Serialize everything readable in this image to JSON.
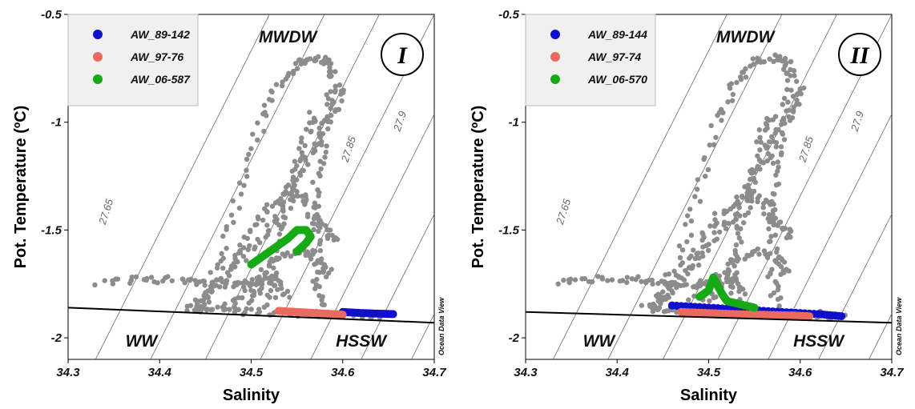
{
  "chart_data": [
    {
      "type": "scatter",
      "panel_label": "I",
      "xlabel": "Salinity",
      "ylabel": "Pot. Temperature (ºC)",
      "xlim": [
        34.3,
        34.7
      ],
      "ylim": [
        -2.1,
        -0.5
      ],
      "x_ticks": [
        "34.3",
        "34.4",
        "34.5",
        "34.6",
        "34.7"
      ],
      "y_ticks": [
        "-0.5",
        "-1",
        "-1.5",
        "-2"
      ],
      "water_masses": [
        {
          "label": "MWDW",
          "x": 34.54,
          "y": -0.63
        },
        {
          "label": "WW",
          "x": 34.38,
          "y": -2.04
        },
        {
          "label": "HSSW",
          "x": 34.62,
          "y": -2.04
        }
      ],
      "isopycnals": [
        {
          "label": "27.65",
          "label_x": 34.345,
          "label_y": -1.42
        },
        {
          "label": "27.85",
          "label_x": 34.61,
          "label_y": -1.13
        },
        {
          "label": "27.9",
          "label_x": 34.666,
          "label_y": -1.0
        }
      ],
      "freezing_line": {
        "x": [
          34.3,
          34.7
        ],
        "y": [
          -1.86,
          -1.93
        ]
      },
      "legend_location": "top-left",
      "credit": "Ocean Data View",
      "colors": {
        "background_points": "#8c8c8c"
      },
      "series": [
        {
          "name": "AW_89-142",
          "color": "#1010cc",
          "x": [
            34.6,
            34.62,
            34.64,
            34.655
          ],
          "y": [
            -1.88,
            -1.885,
            -1.888,
            -1.89
          ]
        },
        {
          "name": "AW_97-76",
          "color": "#ea6a60",
          "x": [
            34.53,
            34.55,
            34.57,
            34.59,
            34.6
          ],
          "y": [
            -1.875,
            -1.88,
            -1.885,
            -1.89,
            -1.893
          ]
        },
        {
          "name": "AW_06-587",
          "color": "#16aa16",
          "x": [
            34.5,
            34.51,
            34.52,
            34.53,
            34.54,
            34.55,
            34.56,
            34.565,
            34.56,
            34.55
          ],
          "y": [
            -1.66,
            -1.63,
            -1.6,
            -1.57,
            -1.54,
            -1.5,
            -1.5,
            -1.53,
            -1.56,
            -1.6
          ]
        }
      ]
    },
    {
      "type": "scatter",
      "panel_label": "II",
      "xlabel": "Salinity",
      "ylabel": "Pot. Temperature (ºC)",
      "xlim": [
        34.3,
        34.7
      ],
      "ylim": [
        -2.1,
        -0.5
      ],
      "x_ticks": [
        "34.3",
        "34.4",
        "34.5",
        "34.6",
        "34.7"
      ],
      "y_ticks": [
        "-0.5",
        "-1",
        "-1.5",
        "-2"
      ],
      "water_masses": [
        {
          "label": "MWDW",
          "x": 34.54,
          "y": -0.63
        },
        {
          "label": "WW",
          "x": 34.38,
          "y": -2.04
        },
        {
          "label": "HSSW",
          "x": 34.62,
          "y": -2.04
        }
      ],
      "isopycnals": [
        {
          "label": "27.65",
          "label_x": 34.345,
          "label_y": -1.42
        },
        {
          "label": "27.85",
          "label_x": 34.61,
          "label_y": -1.13
        },
        {
          "label": "27.9",
          "label_x": 34.666,
          "label_y": -1.0
        }
      ],
      "freezing_line": {
        "x": [
          34.3,
          34.7
        ],
        "y": [
          -1.88,
          -1.93
        ]
      },
      "legend_location": "top-left",
      "credit": "Ocean Data View",
      "colors": {
        "background_points": "#8c8c8c"
      },
      "series": [
        {
          "name": "AW_89-144",
          "color": "#1010cc",
          "x": [
            34.46,
            34.5,
            34.54,
            34.58,
            34.62,
            34.645
          ],
          "y": [
            -1.85,
            -1.86,
            -1.87,
            -1.88,
            -1.89,
            -1.9
          ]
        },
        {
          "name": "AW_97-74",
          "color": "#ea6a60",
          "x": [
            34.47,
            34.5,
            34.53,
            34.56,
            34.59,
            34.61
          ],
          "y": [
            -1.88,
            -1.885,
            -1.89,
            -1.893,
            -1.896,
            -1.9
          ]
        },
        {
          "name": "AW_06-570",
          "color": "#16aa16",
          "x": [
            34.49,
            34.5,
            34.505,
            34.51,
            34.515,
            34.52,
            34.53,
            34.54,
            34.55
          ],
          "y": [
            -1.81,
            -1.78,
            -1.72,
            -1.76,
            -1.8,
            -1.83,
            -1.84,
            -1.85,
            -1.86
          ]
        }
      ]
    }
  ]
}
